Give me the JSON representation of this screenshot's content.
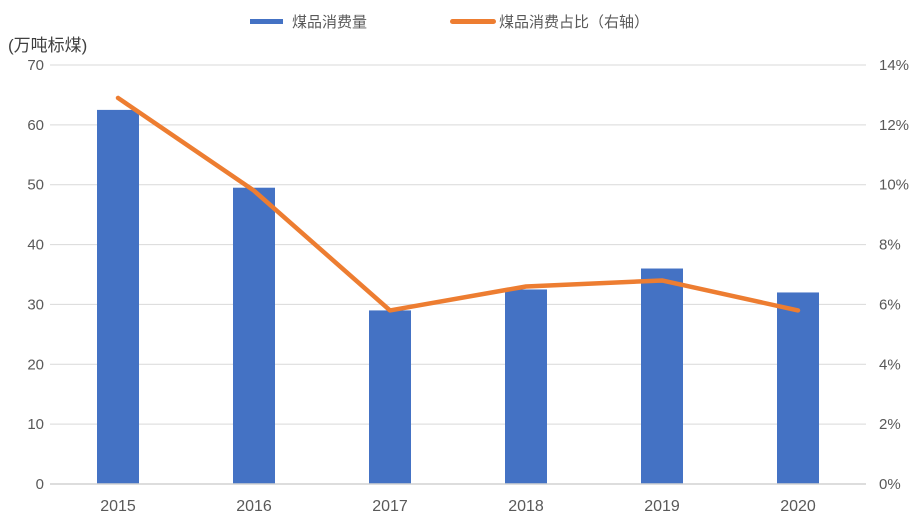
{
  "chart": {
    "unit_label": "(万吨标煤)",
    "legend": [
      {
        "label": "煤品消费量",
        "marker": "bar-swatch",
        "color": "#4472C4"
      },
      {
        "label": "煤品消费占比（右轴）",
        "marker": "line-swatch",
        "color": "#ED7D31"
      }
    ]
  },
  "chart_data": {
    "type": "bar",
    "subtype": "bar+line combo, dual axis",
    "title": "",
    "categories": [
      "2015",
      "2016",
      "2017",
      "2018",
      "2019",
      "2020"
    ],
    "series": [
      {
        "name": "煤品消费量",
        "type": "bar",
        "axis": "left",
        "color": "#4472C4",
        "values": [
          62.5,
          49.5,
          29,
          32.5,
          36,
          32
        ]
      },
      {
        "name": "煤品消费占比（右轴）",
        "type": "line",
        "axis": "right",
        "color": "#ED7D31",
        "values": [
          12.9,
          9.8,
          5.8,
          6.6,
          6.8,
          5.8
        ]
      }
    ],
    "left_axis": {
      "label": "(万吨标煤)",
      "min": 0,
      "max": 70,
      "step": 10,
      "tick_labels": [
        "0",
        "10",
        "20",
        "30",
        "40",
        "50",
        "60",
        "70"
      ]
    },
    "right_axis": {
      "min": 0,
      "max": 14,
      "step": 2,
      "tick_labels": [
        "0%",
        "2%",
        "4%",
        "6%",
        "8%",
        "10%",
        "12%",
        "14%"
      ]
    },
    "grid": true,
    "legend_position": "top-center",
    "colors": {
      "gridline": "#D9D9D9",
      "axis_line": "#D2D2D2",
      "tick_text": "#595959"
    }
  }
}
